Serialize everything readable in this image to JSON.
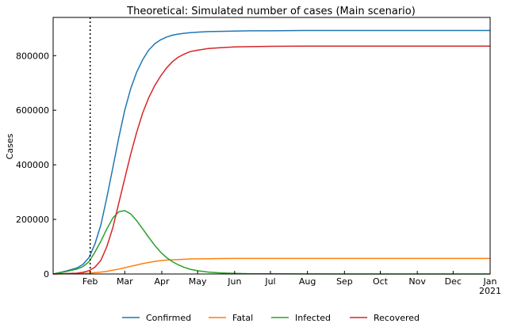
{
  "chart_data": {
    "type": "line",
    "title": "Theoretical: Simulated number of cases (Main scenario)",
    "xlabel": "",
    "ylabel": "Cases",
    "xlim": [
      "2020-01-01",
      "2021-01-01"
    ],
    "ylim": [
      0,
      940000
    ],
    "x_ticks": [
      {
        "date": "2020-02-01",
        "label": "Feb"
      },
      {
        "date": "2020-03-01",
        "label": "Mar"
      },
      {
        "date": "2020-04-01",
        "label": "Apr"
      },
      {
        "date": "2020-05-01",
        "label": "May"
      },
      {
        "date": "2020-06-01",
        "label": "Jun"
      },
      {
        "date": "2020-07-01",
        "label": "Jul"
      },
      {
        "date": "2020-08-01",
        "label": "Aug"
      },
      {
        "date": "2020-09-01",
        "label": "Sep"
      },
      {
        "date": "2020-10-01",
        "label": "Oct"
      },
      {
        "date": "2020-11-01",
        "label": "Nov"
      },
      {
        "date": "2020-12-01",
        "label": "Dec"
      },
      {
        "date": "2021-01-01",
        "label": "Jan"
      }
    ],
    "x_year_label": "2021",
    "y_ticks": [
      0,
      200000,
      400000,
      600000,
      800000
    ],
    "vline_date": "2020-02-01",
    "grid": false,
    "legend_position": "bottom-center",
    "x": [
      "2020-01-01",
      "2020-01-11",
      "2020-01-21",
      "2020-01-26",
      "2020-01-31",
      "2020-02-05",
      "2020-02-10",
      "2020-02-15",
      "2020-02-20",
      "2020-02-25",
      "2020-03-01",
      "2020-03-06",
      "2020-03-11",
      "2020-03-16",
      "2020-03-21",
      "2020-03-26",
      "2020-03-31",
      "2020-04-05",
      "2020-04-10",
      "2020-04-15",
      "2020-04-20",
      "2020-04-25",
      "2020-05-01",
      "2020-05-10",
      "2020-05-20",
      "2020-06-01",
      "2020-06-15",
      "2020-07-01",
      "2020-08-01",
      "2020-09-01",
      "2020-10-01",
      "2020-11-01",
      "2020-12-01",
      "2021-01-01"
    ],
    "series": [
      {
        "name": "Confirmed",
        "color": "#1f77b4",
        "values": [
          0,
          10000,
          22000,
          35000,
          60000,
          110000,
          180000,
          280000,
          390000,
          500000,
          600000,
          680000,
          740000,
          785000,
          820000,
          843000,
          858000,
          868000,
          875000,
          879000,
          882000,
          884000,
          886000,
          888000,
          889000,
          890000,
          891000,
          891000,
          892000,
          892000,
          892000,
          892000,
          892000,
          892000
        ]
      },
      {
        "name": "Fatal",
        "color": "#ff7f0e",
        "values": [
          0,
          500,
          1000,
          2000,
          3000,
          5000,
          7000,
          10000,
          14000,
          18000,
          23000,
          28000,
          33000,
          38000,
          42000,
          46000,
          49000,
          51000,
          52000,
          53000,
          54000,
          55000,
          55500,
          56000,
          56500,
          57000,
          57000,
          57000,
          57000,
          57000,
          57000,
          57000,
          57000,
          57000
        ]
      },
      {
        "name": "Infected",
        "color": "#2ca02c",
        "values": [
          0,
          8000,
          18000,
          27000,
          45000,
          80000,
          120000,
          165000,
          205000,
          228000,
          232000,
          220000,
          195000,
          165000,
          135000,
          105000,
          80000,
          60000,
          45000,
          33000,
          24000,
          17000,
          12000,
          7000,
          4000,
          2000,
          1000,
          500,
          200,
          100,
          0,
          0,
          0,
          0
        ]
      },
      {
        "name": "Recovered",
        "color": "#d62728",
        "values": [
          0,
          1500,
          3000,
          6000,
          12000,
          25000,
          50000,
          100000,
          170000,
          260000,
          350000,
          440000,
          520000,
          590000,
          645000,
          690000,
          725000,
          755000,
          778000,
          795000,
          806000,
          815000,
          820000,
          826000,
          829000,
          832000,
          833000,
          834000,
          835000,
          835000,
          835000,
          835000,
          835000,
          835000
        ]
      }
    ]
  }
}
